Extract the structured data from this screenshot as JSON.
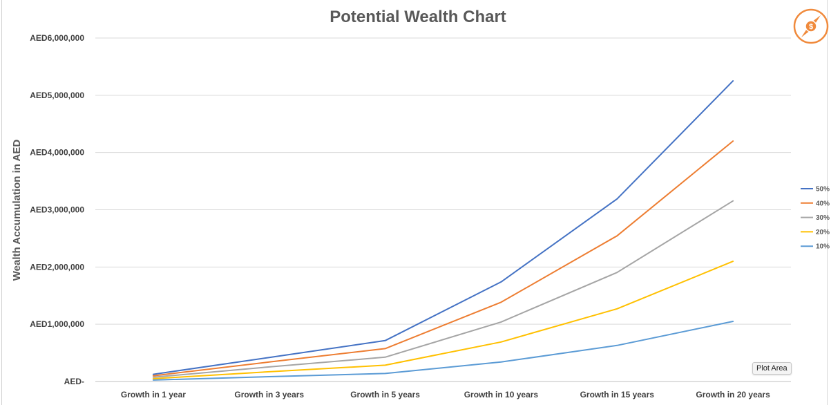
{
  "chart_data": {
    "type": "line",
    "title": "Potential Wealth Chart",
    "ylabel": "Wealth Accumulation in AED",
    "xlabel": "",
    "categories": [
      "Growth in 1 year",
      "Growth in 3 years",
      "Growth in 5 years",
      "Growth in 10 years",
      "Growth in 15 years",
      "Growth in 20 years"
    ],
    "ylim": [
      0,
      6000000
    ],
    "yticks": [
      0,
      1000000,
      2000000,
      3000000,
      4000000,
      5000000,
      6000000
    ],
    "ytick_labels": [
      "AED-",
      "AED1,000,000",
      "AED2,000,000",
      "AED3,000,000",
      "AED4,000,000",
      "AED5,000,000",
      "AED6,000,000"
    ],
    "grid": true,
    "legend_position": "right",
    "series": [
      {
        "name": "50%",
        "color": "#4472c4",
        "values": [
          125000,
          420000,
          715000,
          1740000,
          3190000,
          5250000
        ]
      },
      {
        "name": "40%",
        "color": "#ed7d31",
        "values": [
          100000,
          340000,
          575000,
          1385000,
          2545000,
          4200000
        ]
      },
      {
        "name": "30%",
        "color": "#a5a5a5",
        "values": [
          75000,
          255000,
          425000,
          1040000,
          1905000,
          3155000
        ]
      },
      {
        "name": "20%",
        "color": "#ffc000",
        "values": [
          50000,
          170000,
          285000,
          690000,
          1270000,
          2100000
        ]
      },
      {
        "name": "10%",
        "color": "#5b9bd5",
        "values": [
          25000,
          85000,
          140000,
          340000,
          630000,
          1050000
        ]
      }
    ]
  },
  "tooltip_text": "Plot Area",
  "logo": {
    "icon": "compass-dollar-icon",
    "color": "#f08a3c",
    "symbol": "$"
  }
}
